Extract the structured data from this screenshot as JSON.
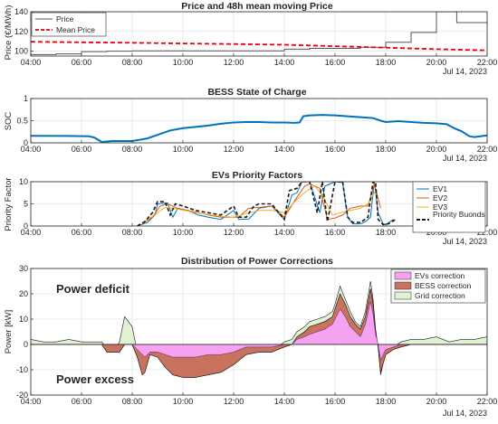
{
  "figure": {
    "date_label": "Jul 14, 2023",
    "x_tick_labels": [
      "04:00",
      "06:00",
      "08:00",
      "10:00",
      "12:00",
      "14:00",
      "16:00",
      "18:00",
      "20:00",
      "22:00"
    ]
  },
  "chart_data": [
    {
      "id": "price",
      "type": "line",
      "title": "Price and 48h mean moving Price",
      "ylabel": "Price (€/MWh)",
      "xlim": [
        4,
        22
      ],
      "ylim": [
        95,
        140
      ],
      "yticks": [
        100,
        120,
        140
      ],
      "legend": {
        "position": "top-left",
        "entries": [
          "Price",
          "Mean Price"
        ]
      },
      "colors": {
        "price": "#555555",
        "mean": "#e8000b"
      },
      "series": [
        {
          "name": "Price",
          "style": "solid-step",
          "x": [
            4.0,
            5.0,
            5.0,
            6.0,
            6.0,
            7.0,
            7.0,
            8.0,
            8.0,
            14.0,
            14.0,
            15.0,
            15.0,
            17.0,
            17.0,
            18.0,
            18.0,
            19.0,
            19.0,
            20.0,
            20.0,
            20.8,
            20.8,
            22.0
          ],
          "y": [
            96.5,
            96.5,
            97.2,
            97.2,
            99.5,
            99.5,
            100.0,
            100.0,
            100.3,
            100.3,
            102.0,
            102.0,
            102.8,
            102.8,
            104.0,
            104.0,
            109.0,
            109.0,
            119.0,
            119.0,
            140.0,
            140.0,
            129.0,
            129.0
          ]
        },
        {
          "name": "Mean Price",
          "style": "dashed",
          "x": [
            4,
            6,
            8,
            10,
            12,
            14,
            16,
            18,
            20,
            22
          ],
          "y": [
            109.5,
            109.0,
            108.5,
            107.8,
            107.2,
            106.5,
            105.0,
            103.5,
            102.0,
            100.8
          ]
        }
      ]
    },
    {
      "id": "soc",
      "type": "line",
      "title": "BESS State of Charge",
      "ylabel": "SOC",
      "xlim": [
        4,
        22
      ],
      "ylim": [
        0,
        1
      ],
      "yticks": [
        0,
        0.5,
        1
      ],
      "colors": {
        "soc": "#0072bd"
      },
      "series": [
        {
          "name": "SOC",
          "x": [
            4.0,
            5.5,
            6.3,
            6.5,
            6.8,
            7.2,
            7.6,
            8.0,
            8.3,
            8.6,
            9.0,
            9.5,
            10.0,
            10.5,
            11.0,
            11.5,
            12.0,
            12.5,
            13.0,
            13.5,
            14.0,
            14.4,
            14.6,
            14.75,
            15.0,
            15.5,
            16.0,
            16.5,
            17.0,
            17.5,
            17.8,
            18.0,
            18.5,
            19.0,
            19.5,
            20.0,
            20.4,
            20.7,
            21.0,
            21.3,
            21.5,
            22.0
          ],
          "y": [
            0.16,
            0.155,
            0.15,
            0.12,
            0.02,
            0.04,
            0.04,
            0.04,
            0.07,
            0.1,
            0.18,
            0.28,
            0.33,
            0.36,
            0.39,
            0.43,
            0.46,
            0.47,
            0.47,
            0.46,
            0.46,
            0.45,
            0.46,
            0.6,
            0.62,
            0.63,
            0.62,
            0.6,
            0.58,
            0.56,
            0.5,
            0.47,
            0.49,
            0.47,
            0.45,
            0.44,
            0.42,
            0.33,
            0.26,
            0.15,
            0.13,
            0.17
          ]
        }
      ]
    },
    {
      "id": "ev",
      "type": "line",
      "title": "EVs Priority Factors",
      "ylabel": "Priority Factor",
      "xlim": [
        4,
        22
      ],
      "ylim": [
        0,
        10
      ],
      "yticks": [
        0,
        5,
        10
      ],
      "legend": {
        "position": "right",
        "entries": [
          "EV1",
          "EV2",
          "EV3",
          "Priority Buonds"
        ]
      },
      "colors": {
        "ev1": "#0072bd",
        "ev2": "#d95319",
        "ev3": "#edb120",
        "bounds": "#1a1a1a"
      },
      "series": [
        {
          "name": "EV1",
          "x": [
            8.2,
            8.6,
            8.9,
            9.0,
            9.4,
            9.6,
            9.8,
            10.2,
            10.6,
            11.0,
            11.5,
            12.0,
            12.2,
            12.6,
            13.0,
            13.5,
            14.0,
            14.3,
            14.5,
            14.7,
            15.0,
            15.4,
            15.6,
            16.0,
            16.3,
            16.5,
            16.7,
            17.0,
            17.2,
            17.4,
            17.55,
            17.7,
            17.9,
            18.0,
            18.3
          ],
          "y": [
            0.0,
            0.8,
            2.5,
            5.0,
            5.2,
            2.0,
            4.0,
            3.5,
            2.5,
            2.0,
            1.5,
            3.5,
            1.5,
            1.6,
            4.0,
            4.5,
            1.5,
            7.0,
            7.5,
            10.0,
            10.0,
            3.0,
            9.0,
            10.0,
            9.8,
            2.0,
            0.5,
            0.5,
            1.0,
            2.0,
            10.0,
            3.0,
            0.5,
            0.3,
            1.5
          ]
        },
        {
          "name": "EV2",
          "x": [
            8.4,
            8.8,
            9.1,
            9.4,
            9.8,
            10.2,
            10.6,
            11.0,
            11.5,
            12.2,
            12.6,
            13.0,
            13.5,
            14.0,
            14.5,
            14.8,
            15.0,
            15.4,
            15.7,
            16.0,
            16.3,
            16.6,
            17.0,
            17.3,
            17.55,
            17.8
          ],
          "y": [
            0.5,
            2.0,
            4.5,
            5.0,
            4.0,
            3.5,
            3.0,
            2.5,
            2.0,
            2.0,
            4.0,
            4.2,
            4.5,
            2.0,
            6.5,
            9.0,
            9.5,
            8.5,
            1.5,
            1.8,
            2.5,
            4.0,
            4.5,
            4.5,
            9.5,
            4.0
          ]
        },
        {
          "name": "EV3",
          "x": [
            8.5,
            9.0,
            9.3,
            9.6,
            10.0,
            10.5,
            11.0,
            11.5,
            12.0,
            12.5,
            13.0,
            13.5,
            14.0,
            14.5,
            14.9,
            15.2,
            15.5,
            15.9,
            16.2,
            16.6,
            17.0,
            17.3,
            17.6
          ],
          "y": [
            1.0,
            3.0,
            4.2,
            4.0,
            3.6,
            3.0,
            2.6,
            2.2,
            2.0,
            2.8,
            3.5,
            3.5,
            3.0,
            6.0,
            8.0,
            9.0,
            7.0,
            2.5,
            3.0,
            3.5,
            4.0,
            5.0,
            8.0
          ]
        },
        {
          "name": "Priority Buonds",
          "style": "dashed",
          "x": [
            8.2,
            8.5,
            8.8,
            9.0,
            9.3,
            9.5,
            9.7,
            10.0,
            10.5,
            11.0,
            11.5,
            12.0,
            12.2,
            12.5,
            12.8,
            13.0,
            13.5,
            14.0,
            14.2,
            14.5,
            14.7,
            15.0,
            15.3,
            15.5,
            15.7,
            16.0,
            16.3,
            16.5,
            16.7,
            17.0,
            17.3,
            17.5,
            17.6,
            17.7,
            17.9,
            18.1,
            18.4
          ],
          "y": [
            0.0,
            1.0,
            3.0,
            5.5,
            5.5,
            2.5,
            5.0,
            4.5,
            3.5,
            3.0,
            2.5,
            4.5,
            2.0,
            2.0,
            4.5,
            5.0,
            5.0,
            1.5,
            8.0,
            8.5,
            10.0,
            10.0,
            3.0,
            10.0,
            1.0,
            10.0,
            10.0,
            2.0,
            0.8,
            0.8,
            2.0,
            10.0,
            10.0,
            1.5,
            0.3,
            0.5,
            1.5
          ]
        }
      ]
    },
    {
      "id": "power",
      "type": "area",
      "title": "Distribution of Power Corrections",
      "ylabel": "Power [kW]",
      "xlim": [
        4,
        22
      ],
      "ylim": [
        -20,
        30
      ],
      "yticks": [
        -20,
        -10,
        0,
        10,
        20,
        30
      ],
      "legend": {
        "position": "top-right",
        "entries": [
          "EVs correction",
          "BESS correction",
          "Grid correction"
        ]
      },
      "annotations": [
        "Power deficit",
        "Power excess"
      ],
      "colors": {
        "evs": "#f5a3f0",
        "bess": "#c9735f",
        "grid": "#dff2d4"
      },
      "x": [
        4.0,
        4.5,
        5.0,
        5.5,
        6.0,
        6.2,
        6.5,
        6.8,
        7.0,
        7.3,
        7.5,
        7.7,
        8.0,
        8.2,
        8.4,
        8.5,
        8.7,
        9.0,
        9.3,
        9.6,
        10.0,
        10.5,
        11.0,
        11.5,
        12.0,
        12.5,
        13.0,
        13.5,
        14.0,
        14.3,
        14.5,
        14.8,
        15.0,
        15.3,
        15.6,
        15.9,
        16.0,
        16.2,
        16.4,
        16.6,
        16.8,
        17.0,
        17.2,
        17.4,
        17.5,
        17.6,
        17.7,
        17.8,
        18.0,
        18.3,
        18.6,
        19.0,
        19.5,
        20.0,
        20.5,
        21.0,
        21.5,
        22.0
      ],
      "series": [
        {
          "name": "EVs correction",
          "values": [
            0,
            0,
            0,
            0,
            0,
            0,
            0,
            0,
            0,
            0,
            0,
            0,
            0,
            -2,
            -4,
            -5,
            -3,
            -3,
            -4,
            -5,
            -5,
            -5,
            -4,
            -4,
            -3,
            -1,
            -1,
            -1,
            0,
            0,
            2,
            3,
            4,
            5,
            6,
            8,
            10,
            14,
            11,
            7,
            5,
            3,
            8,
            17,
            12,
            4,
            0,
            -6,
            -2,
            -1,
            0,
            0,
            0,
            0,
            0,
            0,
            0,
            0
          ]
        },
        {
          "name": "BESS correction",
          "values": [
            0,
            0,
            0,
            0,
            0,
            0,
            0,
            0,
            -3,
            -3,
            -3,
            0,
            0,
            -3,
            -8,
            -6,
            -1,
            -2,
            -5,
            -7,
            -8,
            -8,
            -8,
            -7,
            -5,
            -3,
            -2,
            -2,
            -1,
            0,
            1,
            2,
            3,
            3,
            3,
            3,
            4,
            6,
            5,
            4,
            3,
            3,
            3,
            5,
            4,
            1,
            -1,
            -5,
            -2,
            -1,
            -1,
            0,
            0,
            0,
            0,
            0,
            0,
            0
          ]
        },
        {
          "name": "Grid correction",
          "values": [
            2,
            1,
            1,
            2,
            1,
            1,
            1,
            1,
            1,
            1,
            4,
            11,
            7,
            2,
            1,
            1,
            1,
            1,
            0,
            0,
            0,
            0,
            0,
            0,
            0,
            0,
            0,
            0,
            2,
            2,
            2,
            2,
            2,
            2,
            2,
            2,
            2,
            3,
            2,
            2,
            1,
            1,
            2,
            3,
            2,
            1,
            0,
            -1,
            1,
            1,
            2,
            2,
            2,
            3,
            1,
            2,
            2,
            3
          ]
        }
      ]
    }
  ]
}
